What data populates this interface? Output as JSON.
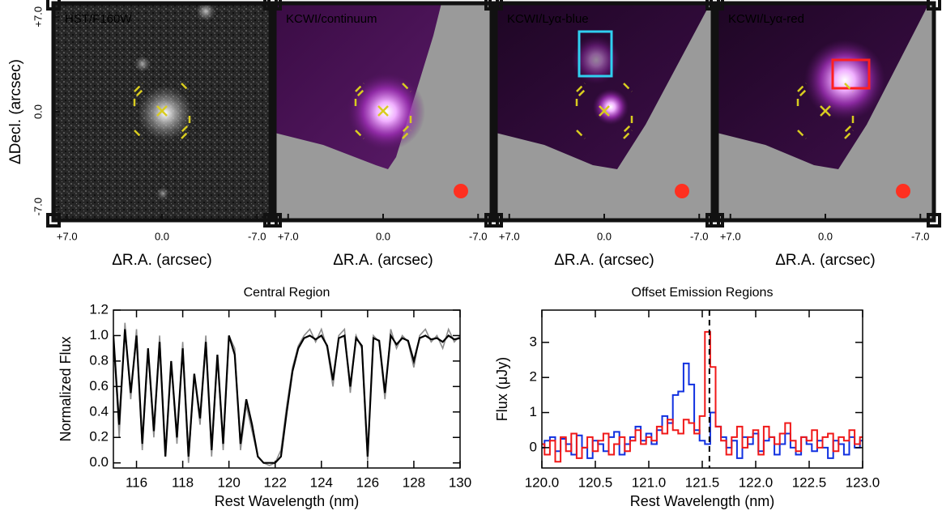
{
  "chart_data": [
    {
      "type": "image",
      "title": "HST/F160W",
      "xlabel": "ΔR.A. (arcsec)",
      "ylabel": "ΔDecl. (arcsec)",
      "xlim": [
        8,
        -8
      ],
      "ylim": [
        -8,
        8
      ],
      "xticks": [
        {
          "value": 7,
          "label": "+7.0"
        },
        {
          "value": 0,
          "label": "0.0"
        },
        {
          "value": -7,
          "label": "-7.0"
        }
      ],
      "yticks": [
        {
          "value": 7,
          "label": "+7.0"
        },
        {
          "value": 0,
          "label": "0.0"
        },
        {
          "value": -7,
          "label": "-7.0"
        }
      ]
    },
    {
      "type": "image",
      "title": "KCWI/continuum",
      "xlabel": "ΔR.A. (arcsec)",
      "xlim": [
        8,
        -8
      ],
      "ylim": [
        -8,
        8
      ],
      "xticks": [
        {
          "value": 7,
          "label": "+7.0"
        },
        {
          "value": 0,
          "label": "0.0"
        },
        {
          "value": -7,
          "label": "-7.0"
        }
      ]
    },
    {
      "type": "image",
      "title": "KCWI/Lyα-blue",
      "xlabel": "ΔR.A. (arcsec)",
      "xlim": [
        8,
        -8
      ],
      "ylim": [
        -8,
        8
      ],
      "xticks": [
        {
          "value": 7,
          "label": "+7.0"
        },
        {
          "value": 0,
          "label": "0.0"
        },
        {
          "value": -7,
          "label": "-7.0"
        }
      ]
    },
    {
      "type": "image",
      "title": "KCWI/Lyα-red",
      "xlabel": "ΔR.A. (arcsec)",
      "xlim": [
        8,
        -8
      ],
      "ylim": [
        -8,
        8
      ],
      "xticks": [
        {
          "value": 7,
          "label": "+7.0"
        },
        {
          "value": 0,
          "label": "0.0"
        },
        {
          "value": -7,
          "label": "-7.0"
        }
      ]
    },
    {
      "type": "line",
      "title": "Central Region",
      "xlabel": "Rest Wavelength (nm)",
      "ylabel": "Normalized Flux",
      "xlim": [
        115,
        130
      ],
      "ylim": [
        -0.04,
        1.2
      ],
      "xticks": [
        116,
        118,
        120,
        122,
        124,
        126,
        128,
        130
      ],
      "yticks": [
        {
          "value": 0,
          "label": "0.0"
        },
        {
          "value": 0.2,
          "label": "0.2"
        },
        {
          "value": 0.4,
          "label": "0.4"
        },
        {
          "value": 0.6,
          "label": "0.6"
        },
        {
          "value": 0.8,
          "label": "0.8"
        },
        {
          "value": 1.0,
          "label": "1.0"
        },
        {
          "value": 1.2,
          "label": "1.2"
        }
      ],
      "x": [
        115,
        115.25,
        115.5,
        115.75,
        116,
        116.25,
        116.5,
        116.75,
        117,
        117.25,
        117.5,
        117.75,
        118,
        118.25,
        118.5,
        118.75,
        119,
        119.25,
        119.5,
        119.75,
        120,
        120.25,
        120.5,
        120.75,
        121,
        121.25,
        121.5,
        121.75,
        122,
        122.25,
        122.5,
        122.75,
        123,
        123.25,
        123.5,
        123.75,
        124,
        124.25,
        124.5,
        124.75,
        125,
        125.25,
        125.5,
        125.75,
        126,
        126.25,
        126.5,
        126.75,
        127,
        127.25,
        127.5,
        127.75,
        128,
        128.25,
        128.5,
        128.75,
        129,
        129.25,
        129.5,
        129.75,
        130
      ],
      "series": [
        {
          "color": "#8c8c8c",
          "values": [
            1.0,
            0.2,
            1.1,
            0.5,
            1.05,
            0.1,
            0.9,
            0.2,
            1.0,
            0.05,
            0.8,
            0.15,
            0.95,
            0.0,
            0.7,
            0.3,
            1.0,
            0.05,
            0.85,
            0.1,
            1.0,
            0.9,
            0.1,
            0.45,
            0.25,
            0.05,
            0.0,
            -0.02,
            0.0,
            0.1,
            0.45,
            0.75,
            0.92,
            1.0,
            1.05,
            0.95,
            1.05,
            0.9,
            0.6,
            1.0,
            1.05,
            0.55,
            1.0,
            0.9,
            0.02,
            1.0,
            0.95,
            0.5,
            1.05,
            0.9,
            1.0,
            0.95,
            0.75,
            1.0,
            1.05,
            0.95,
            1.0,
            0.9,
            1.05,
            0.95,
            1.0
          ]
        },
        {
          "color": "#000000",
          "values": [
            1.0,
            0.3,
            1.05,
            0.55,
            1.0,
            0.15,
            0.9,
            0.25,
            0.95,
            0.05,
            0.8,
            0.2,
            0.9,
            0.05,
            0.7,
            0.35,
            0.95,
            0.1,
            0.85,
            0.15,
            1.0,
            0.85,
            0.15,
            0.5,
            0.3,
            0.05,
            0.0,
            0.0,
            0.0,
            0.05,
            0.4,
            0.72,
            0.9,
            0.98,
            1.0,
            0.97,
            1.0,
            0.92,
            0.65,
            0.98,
            1.0,
            0.6,
            0.98,
            0.92,
            0.05,
            0.98,
            0.96,
            0.55,
            1.0,
            0.93,
            0.98,
            0.96,
            0.8,
            0.98,
            1.0,
            0.97,
            0.98,
            0.95,
            1.0,
            0.97,
            0.98
          ]
        }
      ]
    },
    {
      "type": "step",
      "title": "Offset Emission Regions",
      "xlabel": "Rest Wavelength (nm)",
      "ylabel": "Flux (μJy)",
      "xlim": [
        120,
        123
      ],
      "ylim": [
        -0.58,
        3.92
      ],
      "vline": 121.567,
      "xticks": [
        {
          "value": 120,
          "label": "120.0"
        },
        {
          "value": 120.5,
          "label": "120.5"
        },
        {
          "value": 121,
          "label": "121.0"
        },
        {
          "value": 121.5,
          "label": "121.5"
        },
        {
          "value": 122,
          "label": "122.0"
        },
        {
          "value": 122.5,
          "label": "122.5"
        },
        {
          "value": 123,
          "label": "123.0"
        }
      ],
      "yticks": [
        0,
        1,
        2,
        3
      ],
      "x": [
        120,
        120.05,
        120.1,
        120.15,
        120.2,
        120.25,
        120.3,
        120.35,
        120.4,
        120.45,
        120.5,
        120.55,
        120.6,
        120.65,
        120.7,
        120.75,
        120.8,
        120.85,
        120.9,
        120.95,
        121,
        121.05,
        121.1,
        121.15,
        121.2,
        121.25,
        121.3,
        121.35,
        121.4,
        121.45,
        121.5,
        121.55,
        121.6,
        121.65,
        121.7,
        121.75,
        121.8,
        121.85,
        121.9,
        121.95,
        122,
        122.05,
        122.1,
        122.15,
        122.2,
        122.25,
        122.3,
        122.35,
        122.4,
        122.45,
        122.5,
        122.55,
        122.6,
        122.65,
        122.7,
        122.75,
        122.8,
        122.85,
        122.9,
        122.95,
        123
      ],
      "series": [
        {
          "color": "#1030e0",
          "values": [
            0.0,
            0.2,
            0.3,
            -0.1,
            0.25,
            0.1,
            -0.2,
            0.35,
            0.0,
            -0.3,
            0.2,
            0.1,
            -0.1,
            0.3,
            0.45,
            -0.2,
            0.1,
            0.3,
            0.6,
            0.2,
            0.4,
            0.1,
            0.5,
            0.9,
            0.7,
            1.5,
            1.6,
            2.4,
            1.8,
            0.5,
            0.2,
            0.1,
            1.0,
            0.6,
            0.3,
            0.0,
            0.2,
            -0.3,
            0.3,
            0.1,
            0.4,
            -0.1,
            0.2,
            0.3,
            -0.2,
            0.1,
            0.4,
            0.0,
            -0.2,
            0.3,
            0.1,
            -0.1,
            0.2,
            0.0,
            -0.3,
            0.2,
            0.1,
            -0.2,
            0.3,
            0.0,
            0.2
          ]
        },
        {
          "color": "#f01818",
          "values": [
            0.1,
            -0.2,
            0.2,
            -0.4,
            0.3,
            -0.1,
            0.4,
            -0.3,
            0.0,
            0.3,
            -0.1,
            0.2,
            0.4,
            -0.2,
            0.1,
            0.3,
            -0.1,
            0.2,
            0.5,
            0.1,
            0.3,
            0.2,
            0.6,
            0.4,
            0.8,
            0.5,
            0.4,
            0.8,
            0.7,
            0.4,
            0.9,
            3.3,
            2.3,
            0.6,
            0.2,
            -0.2,
            0.3,
            0.6,
            0.0,
            0.3,
            0.5,
            -0.2,
            0.6,
            0.3,
            0.1,
            0.4,
            0.7,
            0.2,
            -0.1,
            0.3,
            0.2,
            0.5,
            0.0,
            0.3,
            0.4,
            -0.1,
            0.3,
            0.2,
            0.5,
            0.1,
            0.3
          ]
        }
      ]
    }
  ]
}
